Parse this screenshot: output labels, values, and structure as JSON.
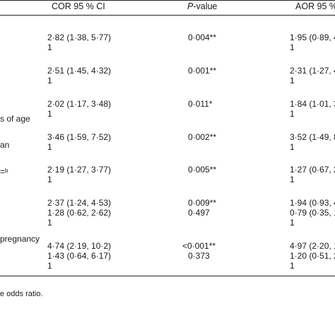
{
  "header": {
    "cor": "COR 95 % CI",
    "pvalue_italic": "P",
    "pvalue_rest": "-value",
    "aor": "AOR 95 %"
  },
  "row_labels": [
    "s of age",
    "an",
    "=ᵇ",
    "pregnancy"
  ],
  "cor": [
    "2·82 (1·38, 5·77)",
    "1",
    "2·51 (1·45, 4·32)",
    "1",
    "2·02 (1·17, 3·48)",
    "1",
    "3·46 (1·59, 7·52)",
    "1",
    "2·19 (1·27, 3·77)",
    "1",
    "2·37 (1·24, 4·53)",
    "1·28 (0·62, 2·62)",
    "1",
    "4·74 (2·19, 10·2)",
    "1·43 (0·64, 6·17)",
    "1"
  ],
  "pvalues": [
    "0·004**",
    "0·001**",
    "0·011*",
    "0·002**",
    "0·005**",
    "0·009**",
    "0·497",
    "<0·001**",
    "0·373"
  ],
  "aor": [
    "1·95 (0·89, 4",
    "1",
    "2·31 (1·27, 4",
    "1",
    "1·84 (1·01, 3",
    "1",
    "3·52 (1·49, 8",
    "1",
    "1·27 (0·67, 2",
    "1",
    "1·94 (0·93, 4",
    "0·79 (0·35, 1",
    "1",
    "4·97 (2·20, 1",
    "1·20 (0·51, 2",
    "1"
  ],
  "footnote": "e odds ratio."
}
